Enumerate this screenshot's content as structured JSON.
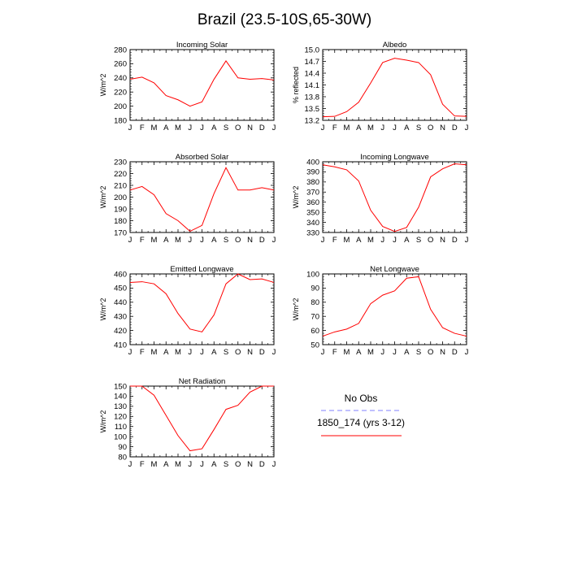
{
  "title": "Brazil (23.5-10S,65-30W)",
  "months": [
    "J",
    "F",
    "M",
    "A",
    "M",
    "J",
    "J",
    "A",
    "S",
    "O",
    "N",
    "D",
    "J"
  ],
  "colors": {
    "model": "#ff0000",
    "obs": "#8080ff",
    "axis": "#000000"
  },
  "legend": {
    "entries": [
      {
        "label": "No Obs",
        "line_style": "dashed",
        "color": "#8080ff"
      },
      {
        "label": "1850_174 (yrs 3-12)",
        "line_style": "solid",
        "color": "#ff0000"
      }
    ]
  },
  "chart_data": [
    {
      "type": "line",
      "title": "Incoming Solar",
      "ylabel": "W/m^2",
      "categories": [
        "J",
        "F",
        "M",
        "A",
        "M",
        "J",
        "J",
        "A",
        "S",
        "O",
        "N",
        "D",
        "J"
      ],
      "ylim": [
        180,
        280
      ],
      "yticks": [
        180,
        200,
        220,
        240,
        260,
        280
      ],
      "series": [
        {
          "values": [
            238,
            241,
            233,
            215,
            209,
            200,
            206,
            238,
            264,
            240,
            238,
            239,
            237
          ]
        }
      ]
    },
    {
      "type": "line",
      "title": "Albedo",
      "ylabel": "% reflected",
      "categories": [
        "J",
        "F",
        "M",
        "A",
        "M",
        "J",
        "J",
        "A",
        "S",
        "O",
        "N",
        "D",
        "J"
      ],
      "ylim": [
        13.2,
        15.0
      ],
      "yticks": [
        "13.2",
        "13.5",
        "13.8",
        "14.1",
        "14.4",
        "14.7",
        "15.0"
      ],
      "series": [
        {
          "values": [
            13.29,
            13.3,
            13.42,
            13.66,
            14.15,
            14.67,
            14.78,
            14.73,
            14.67,
            14.36,
            13.61,
            13.31,
            13.3
          ]
        }
      ]
    },
    {
      "type": "line",
      "title": "Absorbed Solar",
      "ylabel": "W/m^2",
      "categories": [
        "J",
        "F",
        "M",
        "A",
        "M",
        "J",
        "J",
        "A",
        "S",
        "O",
        "N",
        "D",
        "J"
      ],
      "ylim": [
        170,
        230
      ],
      "yticks": [
        170,
        180,
        190,
        200,
        210,
        220,
        230
      ],
      "series": [
        {
          "values": [
            206,
            209,
            202,
            186,
            180,
            171,
            176,
            203,
            225,
            206,
            206,
            208,
            206
          ]
        }
      ]
    },
    {
      "type": "line",
      "title": "Incoming Longwave",
      "ylabel": "W/m^2",
      "categories": [
        "J",
        "F",
        "M",
        "A",
        "M",
        "J",
        "J",
        "A",
        "S",
        "O",
        "N",
        "D",
        "J"
      ],
      "ylim": [
        330,
        400
      ],
      "yticks": [
        330,
        340,
        350,
        360,
        370,
        380,
        390,
        400
      ],
      "series": [
        {
          "values": [
            397,
            395,
            392,
            381,
            352,
            336,
            331,
            335,
            355,
            385,
            393,
            398,
            397
          ]
        }
      ]
    },
    {
      "type": "line",
      "title": "Emitted Longwave",
      "ylabel": "W/m^2",
      "categories": [
        "J",
        "F",
        "M",
        "A",
        "M",
        "J",
        "J",
        "A",
        "S",
        "O",
        "N",
        "D",
        "J"
      ],
      "ylim": [
        410,
        460
      ],
      "yticks": [
        410,
        420,
        430,
        440,
        450,
        460
      ],
      "series": [
        {
          "values": [
            454,
            454.5,
            453,
            446,
            432,
            421,
            419,
            431,
            453,
            460,
            456,
            456.5,
            454
          ]
        }
      ]
    },
    {
      "type": "line",
      "title": "Net Longwave",
      "ylabel": "W/m^2",
      "categories": [
        "J",
        "F",
        "M",
        "A",
        "M",
        "J",
        "J",
        "A",
        "S",
        "O",
        "N",
        "D",
        "J"
      ],
      "ylim": [
        50,
        100
      ],
      "yticks": [
        50,
        60,
        70,
        80,
        90,
        100
      ],
      "series": [
        {
          "values": [
            56,
            59,
            61,
            65,
            79,
            85,
            88,
            97,
            98,
            75,
            62,
            58,
            56
          ]
        }
      ]
    },
    {
      "type": "line",
      "title": "Net Radiation",
      "ylabel": "W/m^2",
      "categories": [
        "J",
        "F",
        "M",
        "A",
        "M",
        "J",
        "J",
        "A",
        "S",
        "O",
        "N",
        "D",
        "J"
      ],
      "ylim": [
        80,
        150
      ],
      "yticks": [
        80,
        90,
        100,
        110,
        120,
        130,
        140,
        150
      ],
      "series": [
        {
          "values": [
            150,
            150,
            141,
            121,
            101,
            86,
            88,
            107,
            127,
            131,
            144,
            150,
            150
          ]
        }
      ]
    }
  ]
}
